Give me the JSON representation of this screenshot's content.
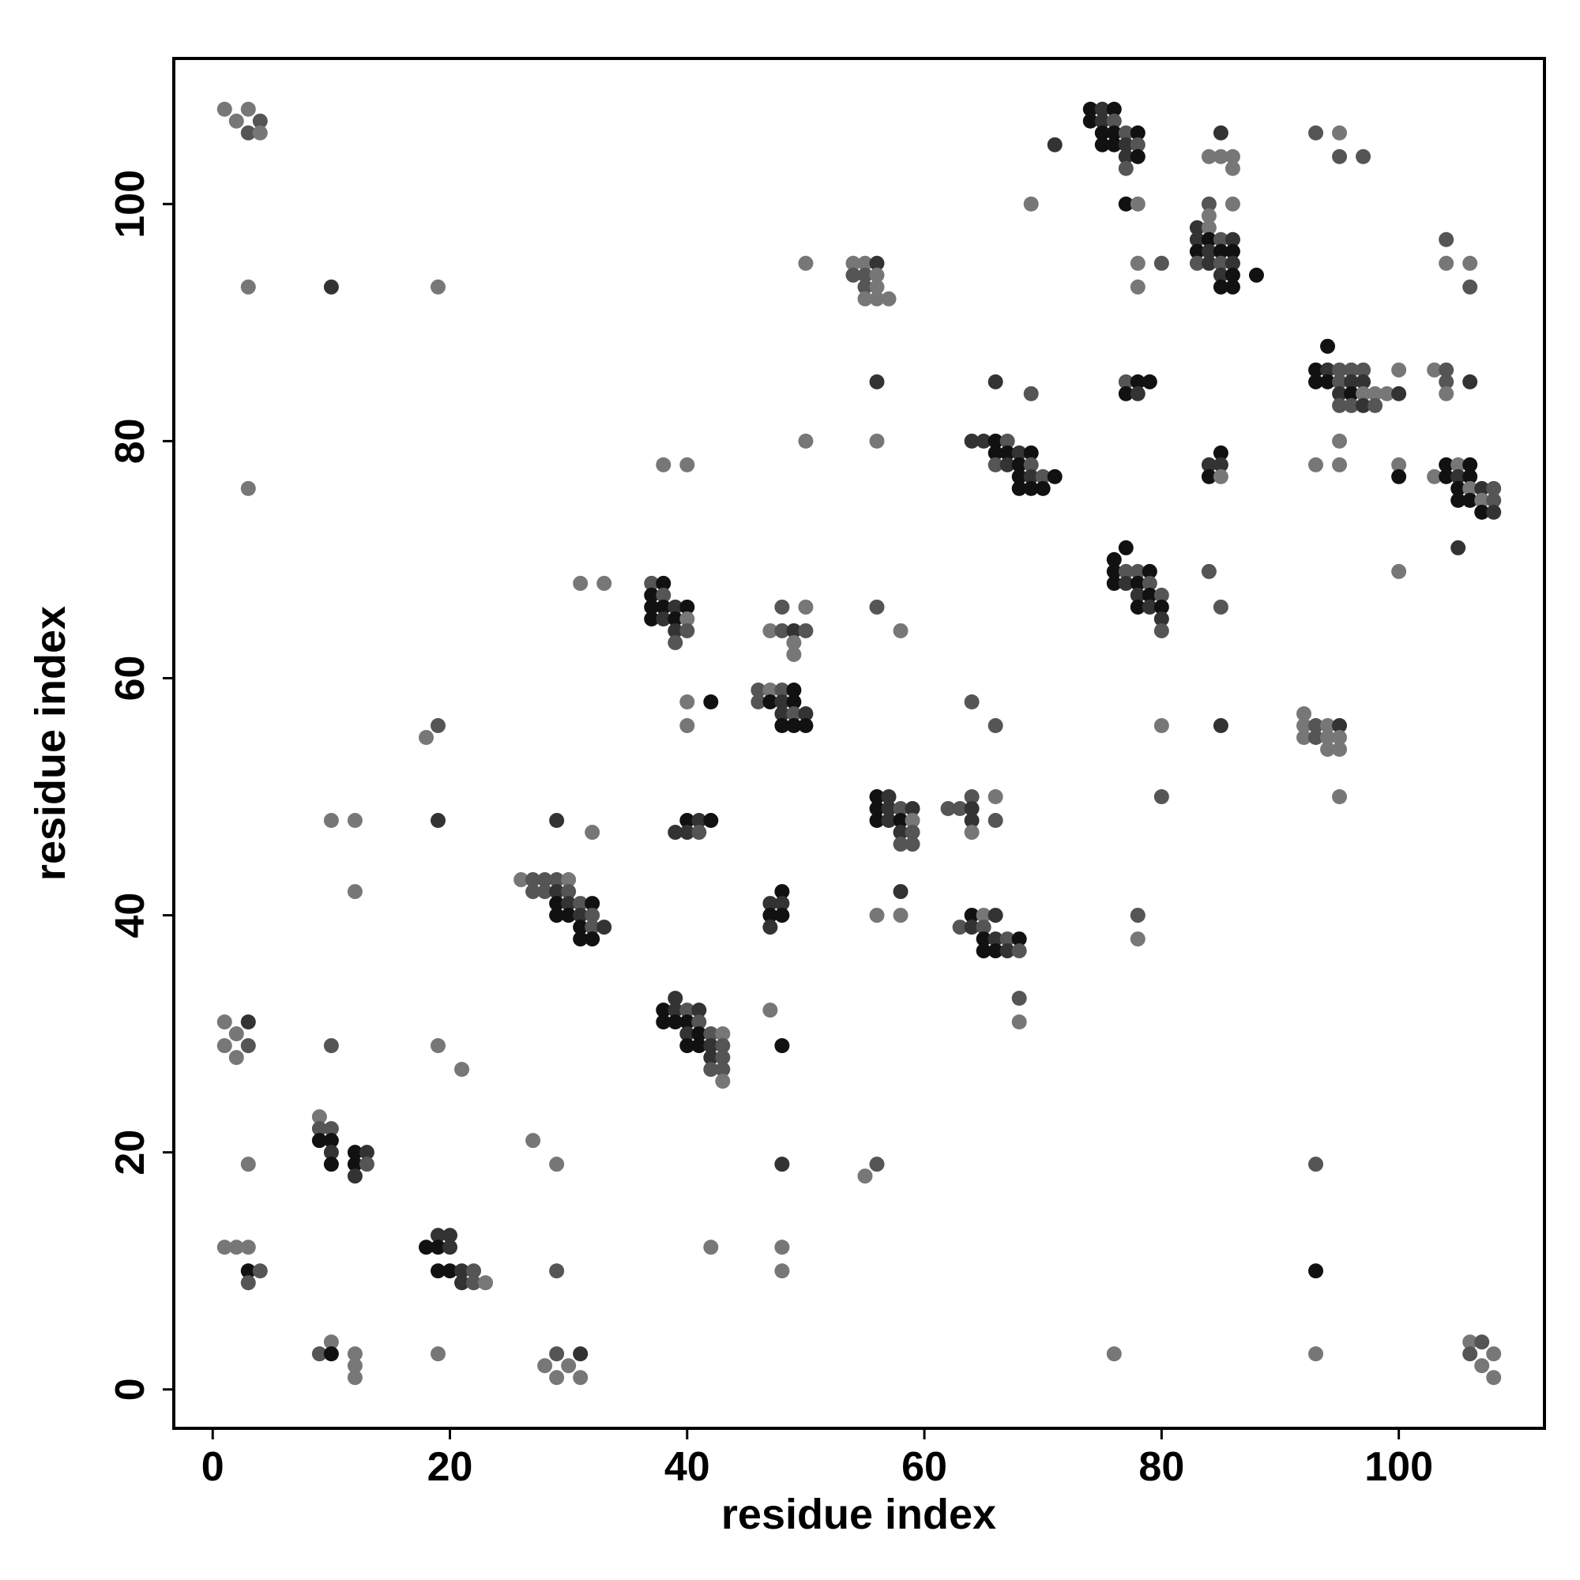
{
  "chart_data": {
    "type": "scatter",
    "xlabel": "residue index",
    "ylabel": "residue index",
    "xlim": [
      -3.28,
      112.28
    ],
    "ylim": [
      -3.28,
      112.28
    ],
    "xticks": [
      0,
      20,
      40,
      60,
      80,
      100
    ],
    "yticks": [
      0,
      20,
      40,
      60,
      80,
      100
    ],
    "x": [
      1,
      3,
      2,
      4,
      3,
      4,
      3,
      10,
      19,
      3,
      1,
      3,
      1,
      2,
      3,
      2,
      10,
      19,
      21,
      9,
      9,
      10,
      9,
      10,
      10,
      10,
      12,
      13,
      12,
      13,
      12,
      3,
      1,
      2,
      3,
      3,
      4,
      3,
      18,
      19,
      20,
      19,
      20,
      19,
      20,
      21,
      22,
      21,
      22,
      23,
      27,
      29,
      29,
      9,
      10,
      10,
      12,
      12,
      12,
      19,
      28,
      29,
      30,
      31,
      29,
      31,
      10,
      12,
      12,
      18,
      19,
      19,
      29,
      32,
      26,
      27,
      28,
      29,
      30,
      27,
      28,
      29,
      30,
      29,
      30,
      31,
      32,
      29,
      30,
      31,
      32,
      31,
      32,
      33,
      31,
      32,
      31,
      33,
      37,
      38,
      37,
      38,
      37,
      38,
      39,
      40,
      37,
      38,
      39,
      40,
      39,
      40,
      39,
      38,
      40,
      40,
      42,
      40,
      39,
      40,
      41,
      42,
      40,
      41,
      39,
      38,
      39,
      40,
      41,
      38,
      39,
      40,
      41,
      40,
      41,
      42,
      43,
      40,
      41,
      42,
      43,
      42,
      43,
      42,
      43,
      43,
      42,
      47,
      48,
      48,
      48,
      48,
      47,
      48,
      48,
      47,
      48,
      47,
      46,
      47,
      48,
      49,
      46,
      47,
      48,
      49,
      48,
      49,
      50,
      48,
      49,
      50,
      48,
      50,
      47,
      48,
      49,
      50,
      49,
      49,
      50,
      50,
      54,
      55,
      56,
      54,
      55,
      56,
      55,
      56,
      55,
      56,
      57,
      56,
      56,
      56,
      58,
      56,
      57,
      56,
      57,
      58,
      59,
      56,
      57,
      58,
      59,
      58,
      59,
      58,
      59,
      58,
      56,
      58,
      55,
      56,
      62,
      63,
      64,
      64,
      64,
      64,
      66,
      66,
      64,
      66,
      63,
      64,
      65,
      66,
      64,
      65,
      65,
      66,
      67,
      68,
      65,
      66,
      67,
      68,
      68,
      68,
      64,
      65,
      66,
      67,
      66,
      67,
      68,
      69,
      66,
      67,
      68,
      69,
      68,
      69,
      70,
      71,
      68,
      69,
      70,
      66,
      69,
      69,
      71,
      74,
      75,
      76,
      74,
      75,
      76,
      75,
      76,
      77,
      78,
      75,
      76,
      77,
      78,
      77,
      78,
      77,
      77,
      78,
      78,
      78,
      80,
      77,
      78,
      79,
      77,
      78,
      76,
      77,
      76,
      77,
      78,
      79,
      76,
      77,
      78,
      79,
      78,
      79,
      80,
      78,
      79,
      80,
      80,
      80,
      78,
      78,
      80,
      80,
      76,
      83,
      84,
      84,
      84,
      83,
      84,
      85,
      86,
      83,
      84,
      85,
      86,
      83,
      84,
      85,
      86,
      85,
      86,
      85,
      86,
      88,
      85,
      84,
      85,
      86,
      86,
      86,
      84,
      85,
      85,
      84,
      85,
      84,
      85,
      85,
      93,
      95,
      95,
      97,
      93,
      94,
      95,
      96,
      97,
      94,
      93,
      94,
      95,
      96,
      97,
      95,
      96,
      97,
      98,
      99,
      100,
      95,
      96,
      97,
      98,
      100,
      95,
      93,
      95,
      92,
      92,
      93,
      94,
      95,
      92,
      93,
      94,
      95,
      94,
      95,
      95,
      93,
      93,
      93,
      100,
      100,
      100,
      103,
      104,
      104,
      104,
      106,
      104,
      104,
      106,
      106,
      103,
      104,
      105,
      106,
      104,
      105,
      106,
      105,
      106,
      107,
      108,
      105,
      106,
      107,
      108,
      107,
      108,
      105,
      106,
      107,
      106,
      108,
      107,
      108
    ],
    "values": [
      108,
      108,
      107,
      107,
      106,
      106,
      93,
      93,
      93,
      76,
      31,
      31,
      29,
      30,
      29,
      28,
      29,
      29,
      27,
      23,
      22,
      22,
      21,
      21,
      20,
      19,
      20,
      20,
      19,
      19,
      18,
      19,
      12,
      12,
      12,
      10,
      10,
      9,
      12,
      13,
      13,
      12,
      12,
      10,
      10,
      10,
      10,
      9,
      9,
      9,
      21,
      19,
      10,
      3,
      4,
      3,
      3,
      2,
      1,
      3,
      2,
      3,
      2,
      3,
      1,
      1,
      48,
      48,
      42,
      55,
      56,
      48,
      48,
      47,
      43,
      43,
      43,
      43,
      43,
      42,
      42,
      42,
      42,
      41,
      41,
      41,
      41,
      40,
      40,
      40,
      40,
      39,
      39,
      39,
      38,
      38,
      68,
      68,
      68,
      68,
      67,
      67,
      66,
      66,
      66,
      66,
      65,
      65,
      65,
      65,
      64,
      64,
      63,
      78,
      78,
      58,
      58,
      56,
      47,
      48,
      48,
      48,
      47,
      47,
      33,
      32,
      32,
      32,
      32,
      31,
      31,
      31,
      31,
      30,
      30,
      30,
      30,
      29,
      29,
      29,
      29,
      28,
      28,
      27,
      27,
      26,
      12,
      32,
      29,
      19,
      12,
      10,
      41,
      42,
      41,
      40,
      40,
      39,
      59,
      59,
      59,
      59,
      58,
      58,
      58,
      58,
      57,
      57,
      57,
      56,
      56,
      56,
      66,
      66,
      64,
      64,
      64,
      64,
      63,
      62,
      95,
      80,
      95,
      95,
      95,
      94,
      94,
      94,
      93,
      93,
      92,
      92,
      92,
      85,
      80,
      66,
      64,
      50,
      50,
      49,
      49,
      49,
      49,
      48,
      48,
      48,
      48,
      47,
      47,
      46,
      46,
      42,
      40,
      40,
      18,
      19,
      49,
      49,
      50,
      49,
      48,
      47,
      50,
      48,
      58,
      56,
      39,
      40,
      40,
      40,
      39,
      39,
      38,
      38,
      38,
      38,
      37,
      37,
      37,
      37,
      33,
      31,
      80,
      80,
      80,
      80,
      79,
      79,
      79,
      79,
      78,
      78,
      78,
      78,
      77,
      77,
      77,
      77,
      76,
      76,
      76,
      85,
      84,
      100,
      105,
      108,
      108,
      108,
      107,
      107,
      107,
      106,
      106,
      106,
      106,
      105,
      105,
      105,
      105,
      104,
      104,
      103,
      100,
      100,
      95,
      93,
      95,
      85,
      85,
      85,
      84,
      84,
      70,
      71,
      69,
      69,
      69,
      69,
      68,
      68,
      68,
      68,
      67,
      67,
      67,
      66,
      66,
      66,
      65,
      64,
      40,
      38,
      56,
      50,
      3,
      98,
      98,
      100,
      99,
      97,
      97,
      97,
      97,
      96,
      96,
      96,
      96,
      95,
      95,
      95,
      95,
      94,
      94,
      93,
      93,
      94,
      106,
      104,
      104,
      104,
      103,
      100,
      78,
      79,
      78,
      77,
      77,
      69,
      66,
      56,
      106,
      106,
      104,
      104,
      86,
      86,
      86,
      86,
      86,
      88,
      85,
      85,
      85,
      85,
      85,
      84,
      84,
      84,
      84,
      84,
      84,
      83,
      83,
      83,
      83,
      86,
      80,
      78,
      78,
      57,
      56,
      56,
      56,
      56,
      55,
      55,
      55,
      55,
      54,
      54,
      50,
      19,
      10,
      3,
      78,
      77,
      69,
      86,
      86,
      85,
      84,
      85,
      97,
      95,
      95,
      93,
      77,
      78,
      78,
      78,
      77,
      77,
      77,
      76,
      76,
      76,
      76,
      75,
      75,
      75,
      75,
      74,
      74,
      71,
      4,
      4,
      3,
      3,
      2,
      1
    ],
    "colors": [
      "#777",
      "#777",
      "#777",
      "#555",
      "#555",
      "#777",
      "#777",
      "#333",
      "#777",
      "#777",
      "#777",
      "#333",
      "#777",
      "#777",
      "#555",
      "#777",
      "#555",
      "#777",
      "#777",
      "#777",
      "#555",
      "#555",
      "#111",
      "#111",
      "#333",
      "#111",
      "#111",
      "#333",
      "#111",
      "#555",
      "#333",
      "#777",
      "#777",
      "#777",
      "#777",
      "#111",
      "#555",
      "#555",
      "#111",
      "#333",
      "#333",
      "#111",
      "#333",
      "#111",
      "#111",
      "#333",
      "#555",
      "#333",
      "#555",
      "#777",
      "#777",
      "#777",
      "#555",
      "#555",
      "#777",
      "#111",
      "#777",
      "#777",
      "#777",
      "#777",
      "#777",
      "#555",
      "#777",
      "#333",
      "#777",
      "#777",
      "#777",
      "#777",
      "#777",
      "#777",
      "#555",
      "#333",
      "#333",
      "#777",
      "#777",
      "#555",
      "#555",
      "#555",
      "#777",
      "#555",
      "#555",
      "#333",
      "#555",
      "#111",
      "#333",
      "#555",
      "#111",
      "#111",
      "#111",
      "#333",
      "#555",
      "#111",
      "#555",
      "#333",
      "#111",
      "#111",
      "#777",
      "#777",
      "#555",
      "#111",
      "#111",
      "#555",
      "#111",
      "#111",
      "#333",
      "#111",
      "#111",
      "#333",
      "#111",
      "#777",
      "#333",
      "#555",
      "#555",
      "#777",
      "#777",
      "#777",
      "#111",
      "#777",
      "#333",
      "#111",
      "#333",
      "#111",
      "#333",
      "#555",
      "#333",
      "#111",
      "#333",
      "#555",
      "#333",
      "#111",
      "#111",
      "#111",
      "#555",
      "#333",
      "#111",
      "#555",
      "#777",
      "#111",
      "#111",
      "#333",
      "#555",
      "#333",
      "#555",
      "#555",
      "#555",
      "#777",
      "#777",
      "#777",
      "#111",
      "#333",
      "#777",
      "#777",
      "#333",
      "#111",
      "#333",
      "#111",
      "#111",
      "#333",
      "#555",
      "#777",
      "#555",
      "#111",
      "#555",
      "#111",
      "#333",
      "#111",
      "#333",
      "#555",
      "#333",
      "#111",
      "#111",
      "#111",
      "#555",
      "#777",
      "#777",
      "#555",
      "#333",
      "#555",
      "#777",
      "#777",
      "#777",
      "#777",
      "#777",
      "#777",
      "#333",
      "#555",
      "#555",
      "#777",
      "#555",
      "#777",
      "#777",
      "#777",
      "#777",
      "#333",
      "#777",
      "#555",
      "#777",
      "#111",
      "#333",
      "#111",
      "#333",
      "#555",
      "#333",
      "#111",
      "#333",
      "#111",
      "#777",
      "#333",
      "#555",
      "#555",
      "#555",
      "#333",
      "#777",
      "#777",
      "#777",
      "#555",
      "#555",
      "#555",
      "#555",
      "#333",
      "#333",
      "#777",
      "#777",
      "#555",
      "#555",
      "#555",
      "#555",
      "#111",
      "#777",
      "#333",
      "#333",
      "#555",
      "#111",
      "#333",
      "#555",
      "#111",
      "#111",
      "#111",
      "#333",
      "#555",
      "#555",
      "#777",
      "#333",
      "#333",
      "#111",
      "#555",
      "#111",
      "#111",
      "#333",
      "#111",
      "#555",
      "#333",
      "#111",
      "#555",
      "#111",
      "#333",
      "#555",
      "#111",
      "#111",
      "#111",
      "#111",
      "#333",
      "#555",
      "#777",
      "#333",
      "#111",
      "#333",
      "#111",
      "#111",
      "#333",
      "#555",
      "#111",
      "#111",
      "#555",
      "#111",
      "#111",
      "#111",
      "#333",
      "#555",
      "#333",
      "#111",
      "#555",
      "#111",
      "#777",
      "#777",
      "#777",
      "#555",
      "#555",
      "#111",
      "#111",
      "#111",
      "#333",
      "#111",
      "#111",
      "#111",
      "#555",
      "#555",
      "#111",
      "#111",
      "#333",
      "#111",
      "#555",
      "#333",
      "#111",
      "#555",
      "#111",
      "#333",
      "#111",
      "#333",
      "#555",
      "#555",
      "#777",
      "#777",
      "#555",
      "#777",
      "#333",
      "#777",
      "#555",
      "#777",
      "#333",
      "#111",
      "#555",
      "#333",
      "#111",
      "#333",
      "#111",
      "#111",
      "#555",
      "#333",
      "#555",
      "#333",
      "#333",
      "#111",
      "#111",
      "#111",
      "#111",
      "#333",
      "#777",
      "#777",
      "#777",
      "#777",
      "#777",
      "#333",
      "#111",
      "#333",
      "#111",
      "#777",
      "#555",
      "#555",
      "#333",
      "#555",
      "#777",
      "#555",
      "#555",
      "#111",
      "#333",
      "#555",
      "#555",
      "#555",
      "#111",
      "#111",
      "#111",
      "#555",
      "#333",
      "#333",
      "#333",
      "#111",
      "#777",
      "#777",
      "#777",
      "#333",
      "#555",
      "#555",
      "#333",
      "#555",
      "#777",
      "#777",
      "#777",
      "#777",
      "#777",
      "#777",
      "#555",
      "#777",
      "#333",
      "#777",
      "#555",
      "#777",
      "#777",
      "#777",
      "#777",
      "#777",
      "#555",
      "#111",
      "#777",
      "#777",
      "#111",
      "#777",
      "#777",
      "#555",
      "#555",
      "#777",
      "#333",
      "#555",
      "#777",
      "#777",
      "#555",
      "#777",
      "#111",
      "#777",
      "#111",
      "#111",
      "#333",
      "#111",
      "#111",
      "#777",
      "#333",
      "#555",
      "#111",
      "#111",
      "#777",
      "#555",
      "#111",
      "#333",
      "#333",
      "#777",
      "#555",
      "#555",
      "#777",
      "#777",
      "#777"
    ]
  }
}
